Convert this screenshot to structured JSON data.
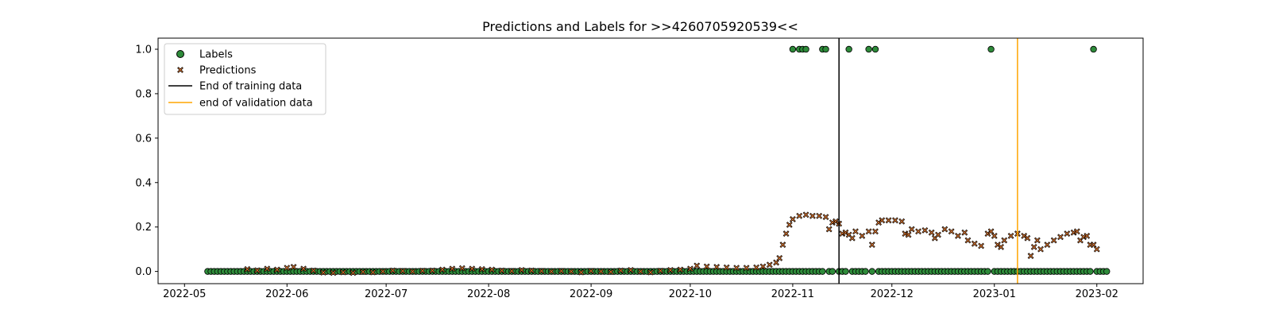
{
  "chart_data": {
    "type": "scatter",
    "title": "Predictions and Labels for >>4260705920539<<",
    "xlabel": "",
    "ylabel": "",
    "xlim": [
      "2022-04-23",
      "2023-02-15"
    ],
    "ylim": [
      -0.055,
      1.05
    ],
    "grid": false,
    "legend_position": "top-left",
    "x_ticks": [
      "2022-05",
      "2022-06",
      "2022-07",
      "2022-08",
      "2022-09",
      "2022-10",
      "2022-11",
      "2022-12",
      "2023-01",
      "2023-02"
    ],
    "y_ticks": [
      "0.0",
      "0.2",
      "0.4",
      "0.6",
      "0.8",
      "1.0"
    ],
    "colors": {
      "labels": "#2e8b3a",
      "predictions": "#ef7d2f",
      "training_line": "#000000",
      "validation_line": "#ffa500"
    },
    "vlines": [
      {
        "name": "End of training data",
        "date": "2022-11-15"
      },
      {
        "name": "end of validation data",
        "date": "2023-01-08"
      }
    ],
    "series": [
      {
        "name": "Labels",
        "marker": "circle",
        "start_date": "2022-05-08",
        "end_date": "2023-02-04",
        "default_value": 0,
        "missing_dates": [
          "2022-11-11",
          "2022-11-14",
          "2022-11-18",
          "2022-11-24",
          "2022-11-26",
          "2022-12-31",
          "2023-01-31"
        ],
        "ones_dates": [
          "2022-11-01",
          "2022-11-03",
          "2022-11-04",
          "2022-11-05",
          "2022-11-10",
          "2022-11-11",
          "2022-11-18",
          "2022-11-24",
          "2022-11-26",
          "2022-12-31",
          "2023-01-31"
        ]
      },
      {
        "name": "Predictions",
        "marker": "x",
        "points": [
          [
            "2022-05-20",
            0.01
          ],
          [
            "2022-05-23",
            0.005
          ],
          [
            "2022-05-26",
            0.012
          ],
          [
            "2022-05-29",
            0.008
          ],
          [
            "2022-06-01",
            0.016
          ],
          [
            "2022-06-03",
            0.02
          ],
          [
            "2022-06-06",
            0.012
          ],
          [
            "2022-06-09",
            0.004
          ],
          [
            "2022-06-12",
            -0.005
          ],
          [
            "2022-06-15",
            -0.006
          ],
          [
            "2022-06-18",
            -0.004
          ],
          [
            "2022-06-21",
            -0.006
          ],
          [
            "2022-06-24",
            -0.002
          ],
          [
            "2022-06-27",
            -0.004
          ],
          [
            "2022-06-30",
            0.0
          ],
          [
            "2022-07-03",
            0.004
          ],
          [
            "2022-07-06",
            0.002
          ],
          [
            "2022-07-09",
            0.0
          ],
          [
            "2022-07-12",
            0.003
          ],
          [
            "2022-07-15",
            0.004
          ],
          [
            "2022-07-18",
            0.008
          ],
          [
            "2022-07-21",
            0.012
          ],
          [
            "2022-07-24",
            0.014
          ],
          [
            "2022-07-27",
            0.012
          ],
          [
            "2022-07-30",
            0.01
          ],
          [
            "2022-08-02",
            0.008
          ],
          [
            "2022-08-05",
            0.004
          ],
          [
            "2022-08-08",
            0.002
          ],
          [
            "2022-08-11",
            0.006
          ],
          [
            "2022-08-14",
            0.004
          ],
          [
            "2022-08-17",
            0.002
          ],
          [
            "2022-08-20",
            0.0
          ],
          [
            "2022-08-23",
            0.002
          ],
          [
            "2022-08-26",
            0.0
          ],
          [
            "2022-08-29",
            -0.004
          ],
          [
            "2022-09-01",
            0.002
          ],
          [
            "2022-09-04",
            0.0
          ],
          [
            "2022-09-07",
            -0.002
          ],
          [
            "2022-09-10",
            0.004
          ],
          [
            "2022-09-13",
            0.006
          ],
          [
            "2022-09-16",
            0.0
          ],
          [
            "2022-09-19",
            -0.004
          ],
          [
            "2022-09-22",
            0.003
          ],
          [
            "2022-09-25",
            0.006
          ],
          [
            "2022-09-28",
            0.008
          ],
          [
            "2022-10-01",
            0.012
          ],
          [
            "2022-10-03",
            0.026
          ],
          [
            "2022-10-06",
            0.022
          ],
          [
            "2022-10-09",
            0.02
          ],
          [
            "2022-10-12",
            0.018
          ],
          [
            "2022-10-15",
            0.016
          ],
          [
            "2022-10-18",
            0.016
          ],
          [
            "2022-10-21",
            0.018
          ],
          [
            "2022-10-23",
            0.022
          ],
          [
            "2022-10-25",
            0.03
          ],
          [
            "2022-10-27",
            0.04
          ],
          [
            "2022-10-28",
            0.06
          ],
          [
            "2022-10-29",
            0.12
          ],
          [
            "2022-10-30",
            0.17
          ],
          [
            "2022-10-31",
            0.21
          ],
          [
            "2022-11-01",
            0.235
          ],
          [
            "2022-11-03",
            0.25
          ],
          [
            "2022-11-05",
            0.255
          ],
          [
            "2022-11-07",
            0.25
          ],
          [
            "2022-11-09",
            0.25
          ],
          [
            "2022-11-11",
            0.245
          ],
          [
            "2022-11-12",
            0.19
          ],
          [
            "2022-11-13",
            0.22
          ],
          [
            "2022-11-14",
            0.225
          ],
          [
            "2022-11-15",
            0.215
          ],
          [
            "2022-11-16",
            0.17
          ],
          [
            "2022-11-17",
            0.175
          ],
          [
            "2022-11-18",
            0.165
          ],
          [
            "2022-11-19",
            0.15
          ],
          [
            "2022-11-20",
            0.18
          ],
          [
            "2022-11-22",
            0.16
          ],
          [
            "2022-11-24",
            0.18
          ],
          [
            "2022-11-25",
            0.12
          ],
          [
            "2022-11-26",
            0.18
          ],
          [
            "2022-11-27",
            0.22
          ],
          [
            "2022-11-28",
            0.23
          ],
          [
            "2022-11-30",
            0.23
          ],
          [
            "2022-12-02",
            0.23
          ],
          [
            "2022-12-04",
            0.225
          ],
          [
            "2022-12-05",
            0.17
          ],
          [
            "2022-12-06",
            0.165
          ],
          [
            "2022-12-07",
            0.19
          ],
          [
            "2022-12-09",
            0.18
          ],
          [
            "2022-12-11",
            0.185
          ],
          [
            "2022-12-13",
            0.175
          ],
          [
            "2022-12-14",
            0.15
          ],
          [
            "2022-12-15",
            0.165
          ],
          [
            "2022-12-17",
            0.19
          ],
          [
            "2022-12-19",
            0.18
          ],
          [
            "2022-12-21",
            0.16
          ],
          [
            "2022-12-23",
            0.175
          ],
          [
            "2022-12-24",
            0.14
          ],
          [
            "2022-12-26",
            0.125
          ],
          [
            "2022-12-28",
            0.115
          ],
          [
            "2022-12-30",
            0.17
          ],
          [
            "2022-12-31",
            0.18
          ],
          [
            "2023-01-01",
            0.16
          ],
          [
            "2023-01-02",
            0.12
          ],
          [
            "2023-01-03",
            0.11
          ],
          [
            "2023-01-04",
            0.14
          ],
          [
            "2023-01-06",
            0.16
          ],
          [
            "2023-01-08",
            0.17
          ],
          [
            "2023-01-10",
            0.16
          ],
          [
            "2023-01-11",
            0.15
          ],
          [
            "2023-01-12",
            0.07
          ],
          [
            "2023-01-13",
            0.11
          ],
          [
            "2023-01-14",
            0.14
          ],
          [
            "2023-01-15",
            0.1
          ],
          [
            "2023-01-17",
            0.12
          ],
          [
            "2023-01-19",
            0.14
          ],
          [
            "2023-01-21",
            0.155
          ],
          [
            "2023-01-23",
            0.17
          ],
          [
            "2023-01-25",
            0.175
          ],
          [
            "2023-01-26",
            0.18
          ],
          [
            "2023-01-27",
            0.14
          ],
          [
            "2023-01-28",
            0.155
          ],
          [
            "2023-01-29",
            0.16
          ],
          [
            "2023-01-30",
            0.12
          ],
          [
            "2023-01-31",
            0.12
          ],
          [
            "2023-02-01",
            0.1
          ]
        ]
      }
    ]
  }
}
